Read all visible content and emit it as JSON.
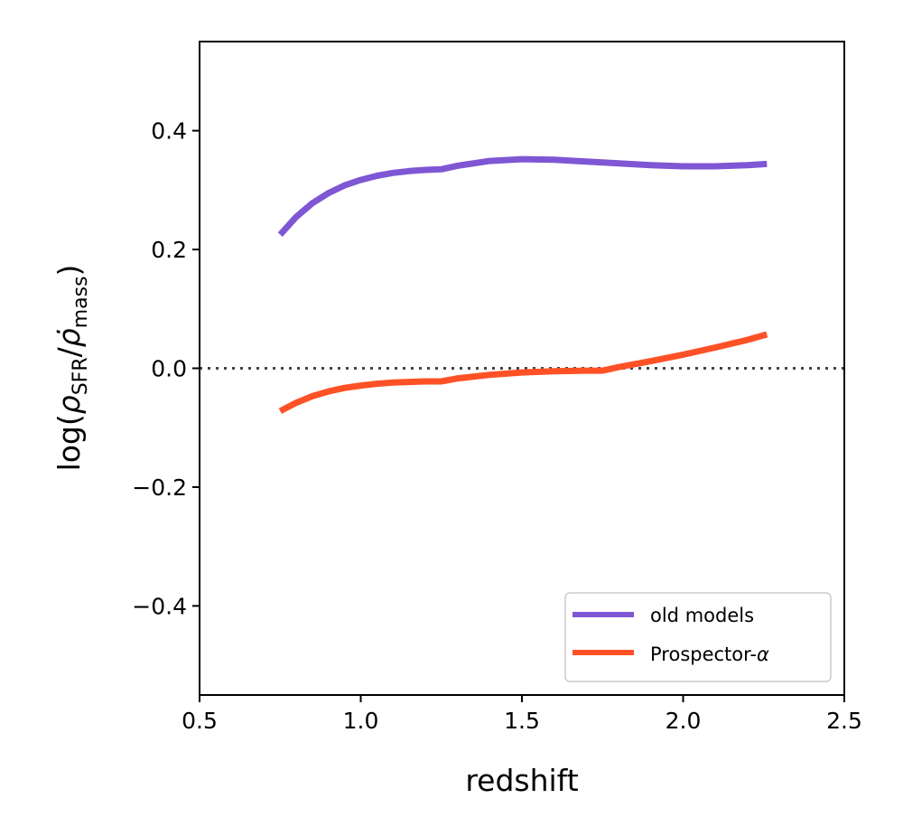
{
  "chart_data": {
    "type": "line",
    "title": "",
    "xlabel": "redshift",
    "ylabel_parts": {
      "prefix": "log(",
      "rho1": "ρ",
      "sub1": "SFR",
      "slash": "/",
      "rho2": "ρ̇",
      "sub2": "mass",
      "suffix": ")"
    },
    "xlim": [
      0.5,
      2.5
    ],
    "ylim": [
      -0.55,
      0.55
    ],
    "xticks": [
      0.5,
      1.0,
      1.5,
      2.0,
      2.5
    ],
    "xtick_labels": [
      "0.5",
      "1.0",
      "1.5",
      "2.0",
      "2.5"
    ],
    "yticks": [
      -0.4,
      -0.2,
      0.0,
      0.2,
      0.4
    ],
    "ytick_labels": [
      "−0.4",
      "−0.2",
      "0.0",
      "0.2",
      "0.4"
    ],
    "grid": false,
    "legend_position": "lower-right",
    "reference_line": {
      "y": 0.0,
      "style": "dotted",
      "color": "#444444"
    },
    "series": [
      {
        "name": "old models",
        "color": "#7f56d4",
        "x": [
          0.75,
          0.8,
          0.85,
          0.9,
          0.95,
          1.0,
          1.05,
          1.1,
          1.15,
          1.2,
          1.25,
          1.3,
          1.4,
          1.5,
          1.6,
          1.7,
          1.8,
          1.9,
          2.0,
          2.1,
          2.2,
          2.26
        ],
        "y": [
          0.225,
          0.255,
          0.278,
          0.295,
          0.308,
          0.317,
          0.324,
          0.329,
          0.332,
          0.334,
          0.335,
          0.341,
          0.349,
          0.352,
          0.351,
          0.348,
          0.345,
          0.342,
          0.34,
          0.34,
          0.342,
          0.344
        ]
      },
      {
        "name": "Prospector-α",
        "name_parts": {
          "text": "Prospector-",
          "greek": "α"
        },
        "color": "#ff5126",
        "x": [
          0.75,
          0.8,
          0.85,
          0.9,
          0.95,
          1.0,
          1.05,
          1.1,
          1.15,
          1.2,
          1.25,
          1.3,
          1.4,
          1.5,
          1.6,
          1.7,
          1.75,
          1.8,
          1.9,
          2.0,
          2.1,
          2.2,
          2.26
        ],
        "y": [
          -0.072,
          -0.058,
          -0.047,
          -0.039,
          -0.033,
          -0.029,
          -0.026,
          -0.024,
          -0.023,
          -0.022,
          -0.022,
          -0.017,
          -0.011,
          -0.007,
          -0.005,
          -0.004,
          -0.004,
          0.002,
          0.012,
          0.023,
          0.035,
          0.048,
          0.057
        ]
      }
    ]
  }
}
